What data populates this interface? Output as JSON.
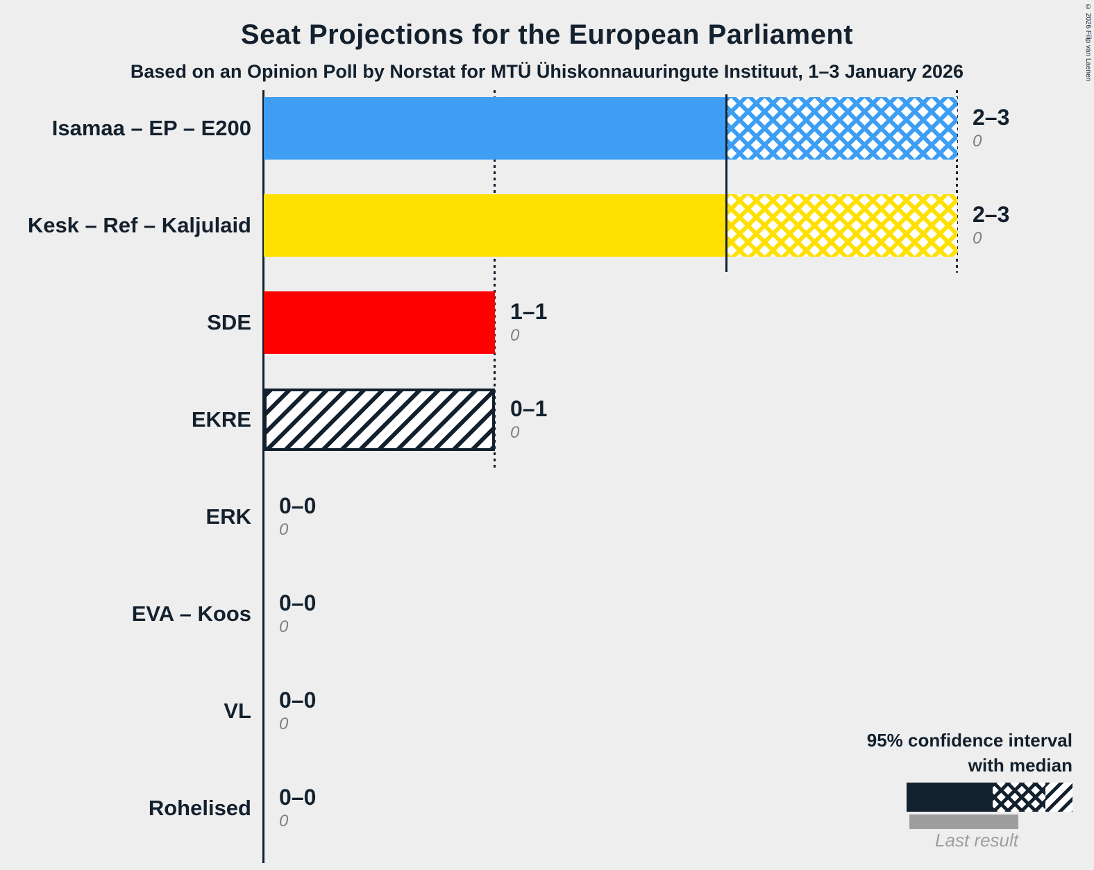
{
  "title": "Seat Projections for the European Parliament",
  "subtitle": "Based on an Opinion Poll by Norstat for MTÜ Ühiskonnauuringute Instituut, 1–3 January 2026",
  "copyright": "© 2026 Filip van Laenen",
  "colors": {
    "background": "#EEEEEE",
    "ink": "#13202D",
    "muted_text": "#808080",
    "last_result_bar": "#9E9E9E"
  },
  "legend": {
    "ci_label_line1": "95% confidence interval",
    "ci_label_line2": "with median",
    "last_result_label": "Last result"
  },
  "chart_data": {
    "type": "bar",
    "orientation": "horizontal",
    "unit": "seats",
    "x_axis": {
      "min": 0,
      "max": 3,
      "gridline_seats": [
        1,
        3
      ],
      "median_marker_seats": 2,
      "grid": "dotted-vertical"
    },
    "legend_position": "bottom-right",
    "parties": [
      {
        "label": "Isamaa – EP – E200",
        "ci_low": 2,
        "ci_high": 3,
        "median": 2,
        "range_label": "2–3",
        "last_result": "0",
        "color": "#3D9EF3",
        "style": "solid-cross"
      },
      {
        "label": "Kesk – Ref – Kaljulaid",
        "ci_low": 2,
        "ci_high": 3,
        "median": 2,
        "range_label": "2–3",
        "last_result": "0",
        "color": "#FFE000",
        "style": "solid-cross"
      },
      {
        "label": "SDE",
        "ci_low": 1,
        "ci_high": 1,
        "median": 1,
        "range_label": "1–1",
        "last_result": "0",
        "color": "#FF0000",
        "style": "solid-cross"
      },
      {
        "label": "EKRE",
        "ci_low": 0,
        "ci_high": 1,
        "range_label": "0–1",
        "last_result": "0",
        "color": "#13202D",
        "style": "outline-diagonal"
      },
      {
        "label": "ERK",
        "ci_low": 0,
        "ci_high": 0,
        "range_label": "0–0",
        "last_result": "0",
        "color": "#13202D",
        "style": "none"
      },
      {
        "label": "EVA – Koos",
        "ci_low": 0,
        "ci_high": 0,
        "range_label": "0–0",
        "last_result": "0",
        "color": "#13202D",
        "style": "none"
      },
      {
        "label": "VL",
        "ci_low": 0,
        "ci_high": 0,
        "range_label": "0–0",
        "last_result": "0",
        "color": "#13202D",
        "style": "none"
      },
      {
        "label": "Rohelised",
        "ci_low": 0,
        "ci_high": 0,
        "range_label": "0–0",
        "last_result": "0",
        "color": "#13202D",
        "style": "none"
      }
    ]
  }
}
